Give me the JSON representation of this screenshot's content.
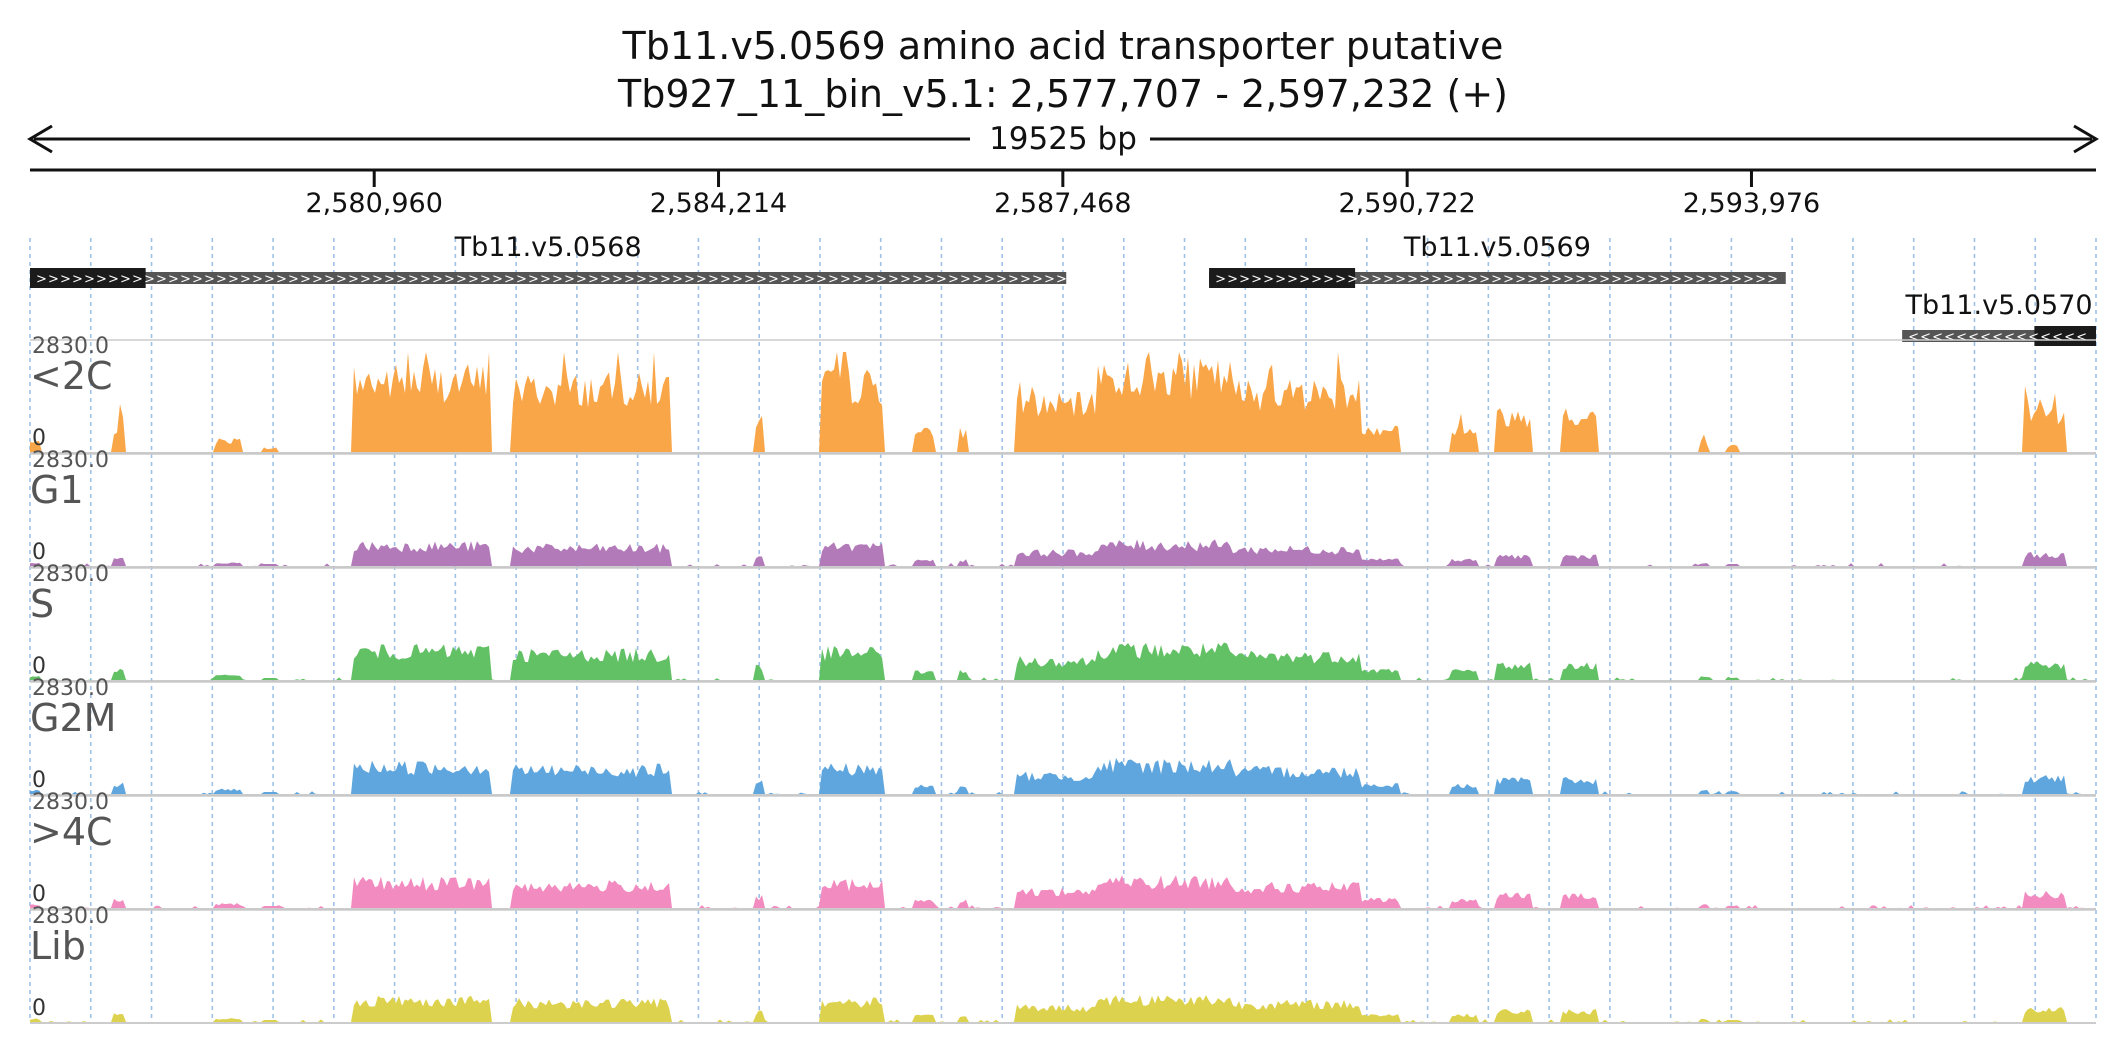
{
  "header": {
    "title_line1": "Tb11.v5.0569  amino acid transporter  putative",
    "title_line2": "Tb927_11_bin_v5.1: 2,577,707 - 2,597,232 (+)",
    "span_label": "19525 bp"
  },
  "region": {
    "start": 2577707,
    "end": 2597232
  },
  "axis": {
    "ticks": [
      {
        "pos": 2580960,
        "label": "2,580,960"
      },
      {
        "pos": 2584214,
        "label": "2,584,214"
      },
      {
        "pos": 2587468,
        "label": "2,587,468"
      },
      {
        "pos": 2590722,
        "label": "2,590,722"
      },
      {
        "pos": 2593976,
        "label": "2,593,976"
      }
    ]
  },
  "genes": [
    {
      "name": "Tb11.v5.0568",
      "strand": "+",
      "start": 2577707,
      "end": 2587500,
      "cds": [
        2577707,
        2578800
      ]
    },
    {
      "name": "Tb11.v5.0569",
      "strand": "+",
      "start": 2588850,
      "end": 2594300,
      "cds": [
        2588850,
        2590230
      ]
    },
    {
      "name": "Tb11.v5.0570",
      "strand": "-",
      "start": 2595400,
      "end": 2597232,
      "cds": [
        2596650,
        2597970
      ]
    }
  ],
  "tracks": [
    {
      "name": "<2C",
      "max_label": "2830.0",
      "zero_label": "0",
      "color": "#f9a648",
      "max": 2830,
      "scale": 1.0,
      "profile": "sharp"
    },
    {
      "name": "G1",
      "max_label": "2830.0",
      "zero_label": "0",
      "color": "#b27ab8",
      "max": 2830,
      "scale": 0.28,
      "profile": "broad"
    },
    {
      "name": "S",
      "max_label": "2830.0",
      "zero_label": "0",
      "color": "#62c065",
      "max": 2830,
      "scale": 0.4,
      "profile": "broad"
    },
    {
      "name": "G2M",
      "max_label": "2830.0",
      "zero_label": "0",
      "color": "#5ea6dd",
      "max": 2830,
      "scale": 0.38,
      "profile": "broad"
    },
    {
      "name": ">4C",
      "max_label": "2830.0",
      "zero_label": "0",
      "color": "#f28bbf",
      "max": 2830,
      "scale": 0.35,
      "profile": "broad"
    },
    {
      "name": "Lib",
      "max_label": "2830.0",
      "zero_label": "0",
      "color": "#ddd24e",
      "max": 2830,
      "scale": 0.3,
      "profile": "broad"
    }
  ],
  "colors": {
    "grid": "#9fc1e6",
    "gene_cds": "#1b1b1b",
    "gene_utr": "#555555",
    "axis": "#111111"
  }
}
